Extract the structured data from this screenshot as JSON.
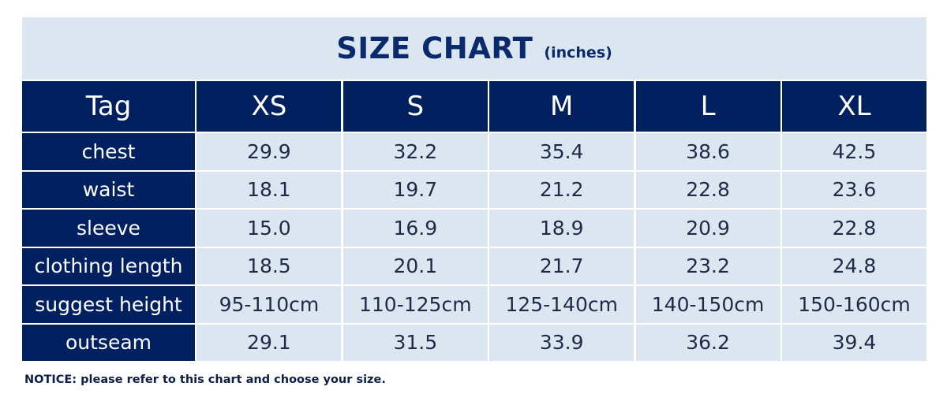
{
  "title": {
    "main": "SIZE CHART",
    "unit": "(inches)"
  },
  "columns": [
    "Tag",
    "XS",
    "S",
    "M",
    "L",
    "XL"
  ],
  "rows": [
    {
      "label": "chest",
      "values": [
        "29.9",
        "32.2",
        "35.4",
        "38.6",
        "42.5"
      ]
    },
    {
      "label": "waist",
      "values": [
        "18.1",
        "19.7",
        "21.2",
        "22.8",
        "23.6"
      ]
    },
    {
      "label": "sleeve",
      "values": [
        "15.0",
        "16.9",
        "18.9",
        "20.9",
        "22.8"
      ]
    },
    {
      "label": "clothing length",
      "values": [
        "18.5",
        "20.1",
        "21.7",
        "23.2",
        "24.8"
      ]
    },
    {
      "label": "suggest height",
      "values": [
        "95-110cm",
        "110-125cm",
        "125-140cm",
        "140-150cm",
        "150-160cm"
      ]
    },
    {
      "label": "outseam",
      "values": [
        "29.1",
        "31.5",
        "33.9",
        "36.2",
        "39.4"
      ]
    }
  ],
  "notice": "NOTICE: please refer to this chart and choose your size.",
  "colors": {
    "header_bg": "#00205f",
    "cell_bg": "#dce6f1",
    "title_text": "#0b2a6b"
  }
}
